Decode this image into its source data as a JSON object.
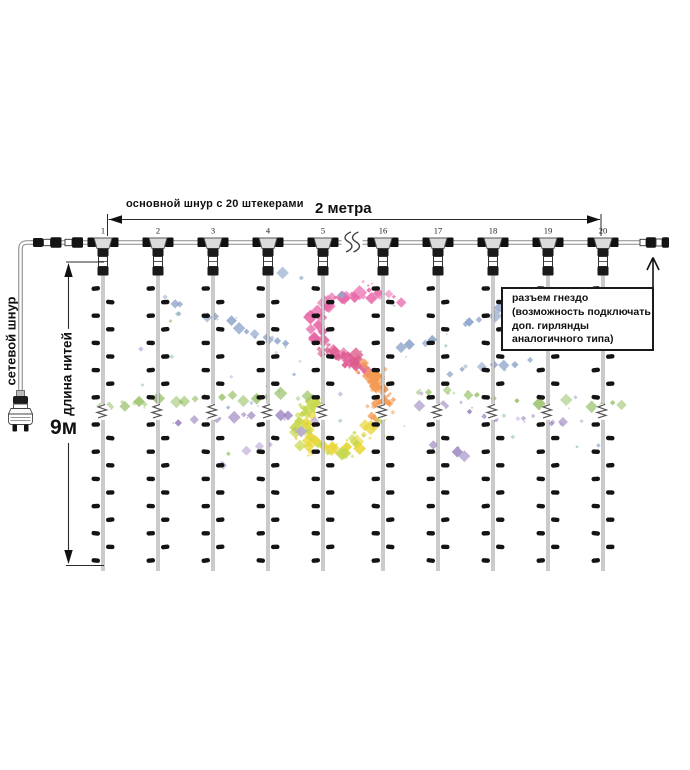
{
  "diagram": {
    "main_cord_label": "основной шнур с 20 штекерами",
    "width_dimension": "2 метра",
    "power_cord_label": "сетевой шнур",
    "strand_length_label": "длина нитей",
    "strand_length_value": "9м",
    "strand_numbers": [
      "1",
      "2",
      "3",
      "4",
      "5",
      "16",
      "17",
      "18",
      "19",
      "20"
    ],
    "connector_note_lines": [
      "разъем гнездо",
      "(возможность подключать",
      "доп. гирлянды",
      "аналогичного типа)"
    ]
  },
  "watermark": {
    "pink": "#e765a6",
    "pink_light": "#f08cc1",
    "rose": "#dd5b8b",
    "orange": "#f49a53",
    "yellow": "#e9d83c",
    "yellow_green": "#c6d84c",
    "green": "#98c169",
    "teal": "#89bba4",
    "blue": "#8aa2c8",
    "purple": "#9c84c0",
    "lavender": "#b8a5d6"
  }
}
